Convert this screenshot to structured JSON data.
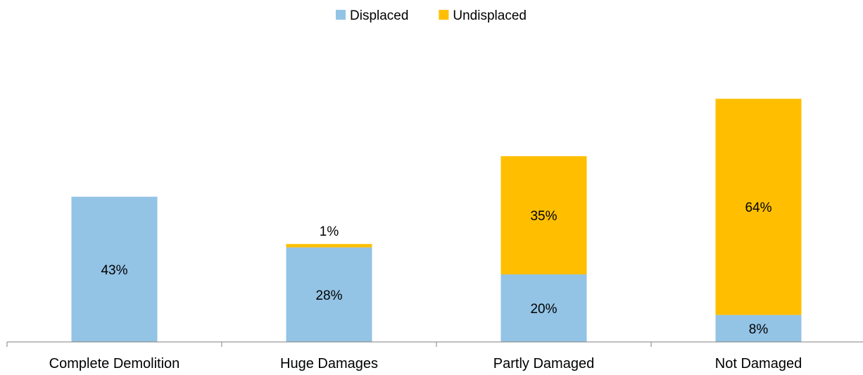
{
  "chart_data": {
    "type": "bar",
    "stacked": true,
    "title": "",
    "xlabel": "",
    "ylabel": "",
    "categories": [
      "Complete Demolition",
      "Huge Damages",
      "Partly Damaged",
      "Not Damaged"
    ],
    "series": [
      {
        "name": "Displaced",
        "values": [
          43,
          28,
          20,
          8
        ],
        "labels": [
          "43%",
          "28%",
          "20%",
          "8%"
        ],
        "color": "#93C3E5"
      },
      {
        "name": "Undisplaced",
        "values": [
          0,
          1,
          35,
          64
        ],
        "labels": [
          "",
          "1%",
          "35%",
          "64%"
        ],
        "color": "#FFBF00"
      }
    ],
    "ylim": [
      0,
      75
    ],
    "grid": false,
    "y_axis_visible": false,
    "legend_position": "top-center",
    "axis_color": "#808080"
  }
}
